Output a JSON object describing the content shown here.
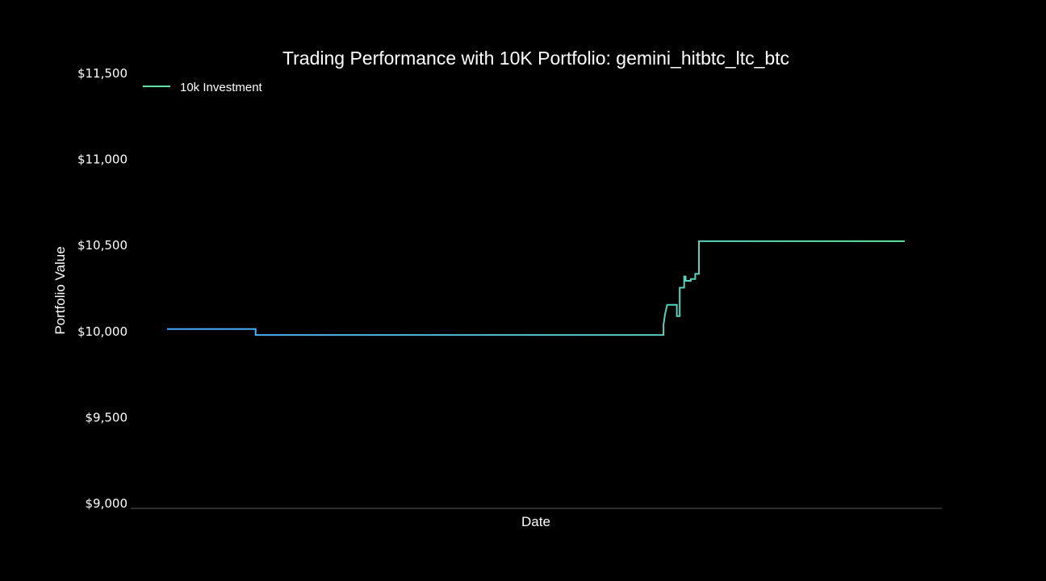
{
  "chart_data": {
    "type": "line",
    "title": "Trading Performance with 10K Portfolio: gemini_hitbtc_ltc_btc",
    "xlabel": "Date",
    "ylabel": "Portfolio Value",
    "ylim": [
      9000,
      11500
    ],
    "yticks": [
      9000,
      9500,
      10000,
      10500,
      11000,
      11500
    ],
    "ytick_labels": [
      "$9,000",
      "$9,500",
      "$10,000",
      "$10,500",
      "$11,000",
      "$11,500"
    ],
    "xlim": [
      0,
      100
    ],
    "grid": false,
    "legend_position": "top-left",
    "series": [
      {
        "name": "10k Investment",
        "step": true,
        "gradient_colors": [
          "#4aa8ff",
          "#5ee3a0"
        ],
        "x": [
          0,
          12,
          12,
          67.3,
          67.3,
          67.5,
          67.6,
          67.8,
          69.1,
          69.1,
          69.5,
          69.5,
          70.1,
          70.1,
          70.3,
          70.3,
          71.0,
          71.0,
          71.6,
          71.6,
          72.1,
          72.1,
          100
        ],
        "y": [
          10010,
          10010,
          9975,
          9975,
          10035,
          10095,
          10115,
          10150,
          10150,
          10085,
          10085,
          10250,
          10250,
          10315,
          10315,
          10290,
          10290,
          10300,
          10300,
          10330,
          10330,
          10520,
          10520
        ]
      }
    ]
  }
}
